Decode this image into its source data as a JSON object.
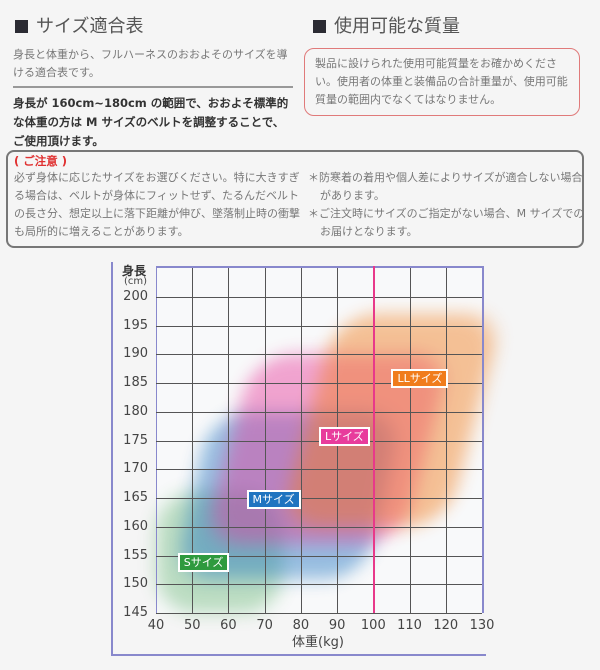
{
  "left": {
    "title": "サイズ適合表",
    "intro": "身長と体重から、フルハーネスのおおよそのサイズを導ける適合表です。",
    "note": "身長が 160cm~180cm の範囲で、おおよそ標準的な体重の方は M サイズのベルトを調整することで、ご使用頂けます。"
  },
  "right": {
    "title": "使用可能な質量",
    "box": "製品に設けられた使用可能質量をお確かめください。使用者の体重と装備品の合計重量が、使用可能質量の範囲内でなくてはなりません。"
  },
  "caution": {
    "heading": "( ご注意 )",
    "left": "必ず身体に応じたサイズをお選びください。特に大きすぎる場合は、ベルトが身体にフィットせず、たるんだベルトの長さ分、想定以上に落下距離が伸び、墜落制止時の衝撃も局所的に増えることがあります。",
    "right1": "＊防寒着の着用や個人差によりサイズが適合しない場合があります。",
    "right2": "＊ご注文時にサイズのご指定がない場合、M サイズでのお届けとなります。"
  },
  "chart_data": {
    "type": "area",
    "ylabel": "身長",
    "yunit": "(cm)",
    "xlabel": "体重(kg)",
    "xlim": [
      40,
      130
    ],
    "ylim": [
      145,
      200
    ],
    "xticks": [
      "40",
      "50",
      "60",
      "70",
      "80",
      "90",
      "100",
      "110",
      "120",
      "130"
    ],
    "yticks": [
      "200",
      "195",
      "190",
      "185",
      "180",
      "175",
      "170",
      "165",
      "160",
      "155",
      "150",
      "145"
    ],
    "grid": true,
    "reference_line": {
      "x": 100,
      "color": "#e8398a"
    },
    "regions": [
      {
        "name": "Sサイズ",
        "color": "#2e9a3e",
        "x": [
          40,
          75
        ],
        "y": [
          145,
          166
        ]
      },
      {
        "name": "Mサイズ",
        "color": "#1f74c0",
        "x": [
          50,
          103
        ],
        "y": [
          151,
          180
        ]
      },
      {
        "name": "Lサイズ",
        "color": "#e83c9c",
        "x": [
          60,
          115
        ],
        "y": [
          157,
          190
        ]
      },
      {
        "name": "LLサイズ",
        "color": "#f07c1c",
        "x": [
          82,
          128
        ],
        "y": [
          160,
          197
        ]
      }
    ]
  }
}
